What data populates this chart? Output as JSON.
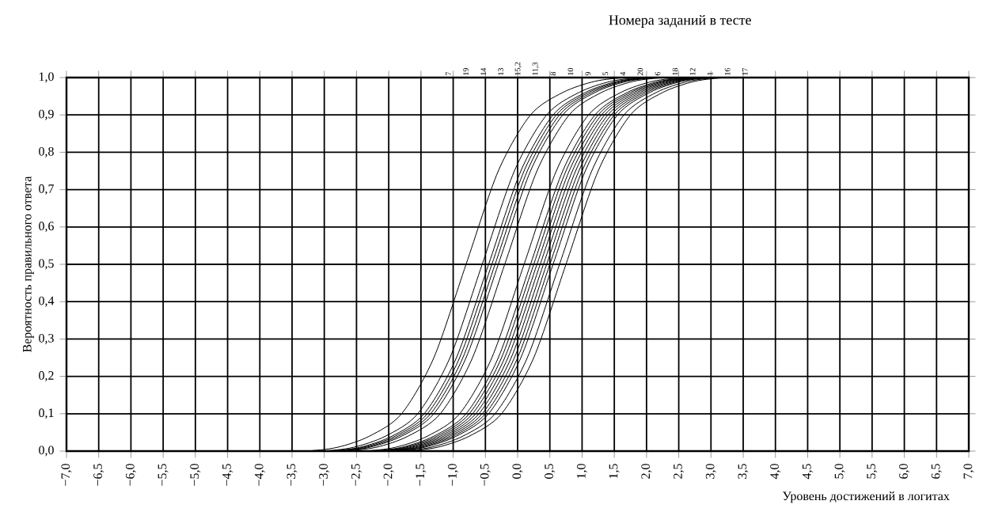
{
  "chart_data": {
    "type": "line",
    "title": "Номера заданий в тесте",
    "xlabel": "Уровень достижений в логитах",
    "ylabel": "Вероятность правильного ответа",
    "annotations": [
      "7",
      "19",
      "14",
      "13",
      "15,2",
      "11,3",
      "8",
      "10",
      "9",
      "5",
      "4",
      "20",
      "6",
      "18",
      "12",
      "1",
      "16",
      "17"
    ],
    "xlim": [
      -7.0,
      7.0
    ],
    "ylim": [
      0.0,
      1.0
    ],
    "xticks": [
      {
        "value": -7.0,
        "label": "−7,0"
      },
      {
        "value": -6.5,
        "label": "−6,5"
      },
      {
        "value": -6.0,
        "label": "−6,0"
      },
      {
        "value": -5.5,
        "label": "−5,5"
      },
      {
        "value": -5.0,
        "label": "−5,0"
      },
      {
        "value": -4.5,
        "label": "−4,5"
      },
      {
        "value": -4.0,
        "label": "−4,0"
      },
      {
        "value": -3.5,
        "label": "−3,5"
      },
      {
        "value": -3.0,
        "label": "−3,0"
      },
      {
        "value": -2.5,
        "label": "−2,5"
      },
      {
        "value": -2.0,
        "label": "−2,0"
      },
      {
        "value": -1.5,
        "label": "−1,5"
      },
      {
        "value": -1.0,
        "label": "−1,0"
      },
      {
        "value": -0.5,
        "label": "−0,5"
      },
      {
        "value": 0.0,
        "label": "0,0"
      },
      {
        "value": 0.5,
        "label": "0,5"
      },
      {
        "value": 1.0,
        "label": "1,0"
      },
      {
        "value": 1.5,
        "label": "1,5"
      },
      {
        "value": 2.0,
        "label": "2,0"
      },
      {
        "value": 2.5,
        "label": "2,5"
      },
      {
        "value": 3.0,
        "label": "3,0"
      },
      {
        "value": 3.5,
        "label": "3,5"
      },
      {
        "value": 4.0,
        "label": "4,0"
      },
      {
        "value": 4.5,
        "label": "4,5"
      },
      {
        "value": 5.0,
        "label": "5,0"
      },
      {
        "value": 5.5,
        "label": "5,5"
      },
      {
        "value": 6.0,
        "label": "6,0"
      },
      {
        "value": 6.5,
        "label": "6,5"
      },
      {
        "value": 7.0,
        "label": "7,0"
      }
    ],
    "yticks": [
      {
        "value": 0.0,
        "label": "0,0"
      },
      {
        "value": 0.1,
        "label": "0,1"
      },
      {
        "value": 0.2,
        "label": "0,2"
      },
      {
        "value": 0.3,
        "label": "0,3"
      },
      {
        "value": 0.4,
        "label": "0,4"
      },
      {
        "value": 0.5,
        "label": "0,5"
      },
      {
        "value": 0.6,
        "label": "0,6"
      },
      {
        "value": 0.7,
        "label": "0,7"
      },
      {
        "value": 0.8,
        "label": "0,8"
      },
      {
        "value": 0.9,
        "label": "0,9"
      },
      {
        "value": 1.0,
        "label": "1,0"
      }
    ],
    "grid": true,
    "series": [
      {
        "color": "#000000",
        "x": [
          -3.8,
          -3.3,
          -2.8,
          -2.3,
          -1.8,
          -1.3,
          -0.8,
          -0.3,
          0.2,
          0.7,
          1.2,
          1.7,
          2.2
        ],
        "values": [
          0.0,
          0.0,
          0.01,
          0.04,
          0.1,
          0.25,
          0.5,
          0.75,
          0.9,
          0.96,
          0.99,
          1.0,
          1.0
        ]
      },
      {
        "color": "#000000",
        "x": [
          -3.55,
          -3.05,
          -2.55,
          -2.05,
          -1.55,
          -1.05,
          -0.55,
          -0.05,
          0.45,
          0.95,
          1.45,
          1.95,
          2.45
        ],
        "values": [
          0.0,
          0.0,
          0.01,
          0.04,
          0.1,
          0.25,
          0.5,
          0.75,
          0.9,
          0.96,
          0.99,
          1.0,
          1.0
        ]
      },
      {
        "color": "#000000",
        "x": [
          -3.45,
          -2.95,
          -2.45,
          -1.95,
          -1.45,
          -0.95,
          -0.45,
          0.05,
          0.55,
          1.05,
          1.55,
          2.05,
          2.55
        ],
        "values": [
          0.0,
          0.0,
          0.01,
          0.04,
          0.1,
          0.25,
          0.5,
          0.75,
          0.9,
          0.96,
          0.99,
          1.0,
          1.0
        ]
      },
      {
        "color": "#000000",
        "x": [
          -3.4,
          -2.9,
          -2.4,
          -1.9,
          -1.4,
          -0.9,
          -0.4,
          0.1,
          0.6,
          1.1,
          1.6,
          2.1,
          2.6
        ],
        "values": [
          0.0,
          0.0,
          0.01,
          0.04,
          0.1,
          0.25,
          0.5,
          0.75,
          0.9,
          0.96,
          0.99,
          1.0,
          1.0
        ]
      },
      {
        "color": "#000000",
        "x": [
          -3.35,
          -2.85,
          -2.35,
          -1.85,
          -1.35,
          -0.85,
          -0.35,
          0.15,
          0.65,
          1.15,
          1.65,
          2.15,
          2.65
        ],
        "values": [
          0.0,
          0.0,
          0.01,
          0.04,
          0.1,
          0.25,
          0.5,
          0.75,
          0.9,
          0.96,
          0.99,
          1.0,
          1.0
        ]
      },
      {
        "color": "#000000",
        "x": [
          -3.3,
          -2.8,
          -2.3,
          -1.8,
          -1.3,
          -0.8,
          -0.3,
          0.2,
          0.7,
          1.2,
          1.7,
          2.2,
          2.7
        ],
        "values": [
          0.0,
          0.0,
          0.01,
          0.04,
          0.1,
          0.25,
          0.5,
          0.75,
          0.9,
          0.96,
          0.99,
          1.0,
          1.0
        ]
      },
      {
        "color": "#000000",
        "x": [
          -3.2,
          -2.7,
          -2.2,
          -1.7,
          -1.2,
          -0.7,
          -0.2,
          0.3,
          0.8,
          1.3,
          1.8,
          2.3,
          2.8
        ],
        "values": [
          0.0,
          0.0,
          0.01,
          0.04,
          0.1,
          0.25,
          0.5,
          0.75,
          0.9,
          0.96,
          0.99,
          1.0,
          1.0
        ]
      },
      {
        "color": "#000000",
        "x": [
          -2.9,
          -2.4,
          -1.9,
          -1.4,
          -0.9,
          -0.4,
          0.1,
          0.6,
          1.1,
          1.6,
          2.1,
          2.6,
          3.1
        ],
        "values": [
          0.0,
          0.0,
          0.01,
          0.04,
          0.1,
          0.25,
          0.5,
          0.75,
          0.9,
          0.96,
          0.99,
          1.0,
          1.0
        ]
      },
      {
        "color": "#000000",
        "x": [
          -2.8,
          -2.3,
          -1.8,
          -1.3,
          -0.8,
          -0.3,
          0.2,
          0.7,
          1.2,
          1.7,
          2.2,
          2.7,
          3.2
        ],
        "values": [
          0.0,
          0.0,
          0.01,
          0.04,
          0.1,
          0.25,
          0.5,
          0.75,
          0.9,
          0.96,
          0.99,
          1.0,
          1.0
        ]
      },
      {
        "color": "#000000",
        "x": [
          -2.75,
          -2.25,
          -1.75,
          -1.25,
          -0.75,
          -0.25,
          0.25,
          0.75,
          1.25,
          1.75,
          2.25,
          2.75,
          3.25
        ],
        "values": [
          0.0,
          0.0,
          0.01,
          0.04,
          0.1,
          0.25,
          0.5,
          0.75,
          0.9,
          0.96,
          0.99,
          1.0,
          1.0
        ]
      },
      {
        "color": "#000000",
        "x": [
          -2.7,
          -2.2,
          -1.7,
          -1.2,
          -0.7,
          -0.2,
          0.3,
          0.8,
          1.3,
          1.8,
          2.3,
          2.8,
          3.3
        ],
        "values": [
          0.0,
          0.0,
          0.01,
          0.04,
          0.1,
          0.25,
          0.5,
          0.75,
          0.9,
          0.96,
          0.99,
          1.0,
          1.0
        ]
      },
      {
        "color": "#000000",
        "x": [
          -2.65,
          -2.15,
          -1.65,
          -1.15,
          -0.65,
          -0.15,
          0.35,
          0.85,
          1.35,
          1.85,
          2.35,
          2.85,
          3.35
        ],
        "values": [
          0.0,
          0.0,
          0.01,
          0.04,
          0.1,
          0.25,
          0.5,
          0.75,
          0.9,
          0.96,
          0.99,
          1.0,
          1.0
        ]
      },
      {
        "color": "#000000",
        "x": [
          -2.6,
          -2.1,
          -1.6,
          -1.1,
          -0.6,
          -0.1,
          0.4,
          0.9,
          1.4,
          1.9,
          2.4,
          2.9,
          3.4
        ],
        "values": [
          0.0,
          0.0,
          0.01,
          0.04,
          0.1,
          0.25,
          0.5,
          0.75,
          0.9,
          0.96,
          0.99,
          1.0,
          1.0
        ]
      },
      {
        "color": "#000000",
        "x": [
          -2.55,
          -2.05,
          -1.55,
          -1.05,
          -0.55,
          -0.05,
          0.45,
          0.95,
          1.45,
          1.95,
          2.45,
          2.95,
          3.45
        ],
        "values": [
          0.0,
          0.0,
          0.01,
          0.04,
          0.1,
          0.25,
          0.5,
          0.75,
          0.9,
          0.96,
          0.99,
          1.0,
          1.0
        ]
      },
      {
        "color": "#000000",
        "x": [
          -2.5,
          -2.0,
          -1.5,
          -1.0,
          -0.5,
          0.0,
          0.5,
          1.0,
          1.5,
          2.0,
          2.5,
          3.0,
          3.5
        ],
        "values": [
          0.0,
          0.0,
          0.01,
          0.04,
          0.1,
          0.25,
          0.5,
          0.75,
          0.9,
          0.96,
          0.99,
          1.0,
          1.0
        ]
      },
      {
        "color": "#000000",
        "x": [
          -2.45,
          -1.95,
          -1.45,
          -0.95,
          -0.45,
          0.05,
          0.55,
          1.05,
          1.55,
          2.05,
          2.55,
          3.05,
          3.55
        ],
        "values": [
          0.0,
          0.0,
          0.01,
          0.04,
          0.1,
          0.25,
          0.5,
          0.75,
          0.9,
          0.96,
          0.99,
          1.0,
          1.0
        ]
      },
      {
        "color": "#000000",
        "x": [
          -2.35,
          -1.85,
          -1.35,
          -0.85,
          -0.35,
          0.15,
          0.65,
          1.15,
          1.65,
          2.15,
          2.65,
          3.15,
          3.65
        ],
        "values": [
          0.0,
          0.0,
          0.01,
          0.04,
          0.1,
          0.25,
          0.5,
          0.75,
          0.9,
          0.96,
          0.99,
          1.0,
          1.0
        ]
      },
      {
        "color": "#000000",
        "x": [
          -2.25,
          -1.75,
          -1.25,
          -0.75,
          -0.25,
          0.25,
          0.75,
          1.25,
          1.75,
          2.25,
          2.75,
          3.25,
          3.75
        ],
        "values": [
          0.0,
          0.0,
          0.01,
          0.04,
          0.1,
          0.25,
          0.5,
          0.75,
          0.9,
          0.96,
          0.99,
          1.0,
          1.0
        ]
      }
    ]
  }
}
